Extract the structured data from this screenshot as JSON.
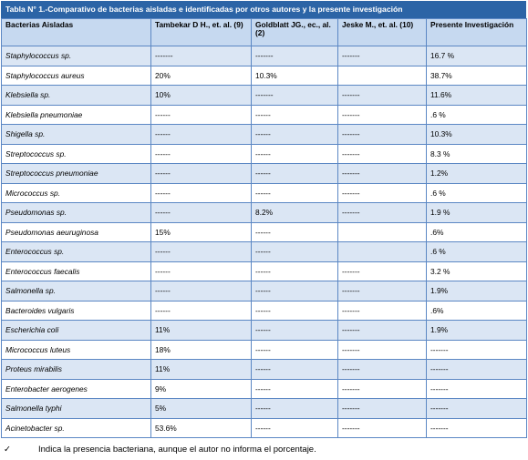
{
  "table": {
    "title": "Tabla N° 1.-Comparativo de bacterias aisladas e identificadas por otros autores y la presente investigación",
    "header": [
      "Bacterias Aisladas",
      "Tambekar D H., et. al. (9)",
      "Goldblatt JG., ec., al. (2)",
      "Jeske M., et. al. (10)",
      "Presente Investigación"
    ],
    "rows": [
      [
        "Staphylococcus sp.",
        "-------",
        "-------",
        "-------",
        "16.7 %"
      ],
      [
        "Staphylococcus aureus",
        "20%",
        "10.3%",
        null,
        "38.7%"
      ],
      [
        "Klebsiella sp.",
        "10%",
        "-------",
        "-------",
        "11.6%"
      ],
      [
        "Klebsiella pneumoniae",
        "------",
        "------",
        "-------",
        ".6 %"
      ],
      [
        "Shigella sp.",
        "------",
        "------",
        "-------",
        "10.3%"
      ],
      [
        "Streptococcus sp.",
        "------",
        "------",
        "-------",
        "8.3 %"
      ],
      [
        "Streptococcus pneumoniae",
        "------",
        "------",
        "-------",
        "1.2%"
      ],
      [
        "Micrococcus sp.",
        "------",
        "------",
        "-------",
        ".6 %"
      ],
      [
        "Pseudomonas sp.",
        "------",
        "8.2%",
        "-------",
        "1.9 %"
      ],
      [
        "Pseudomonas aeuruginosa",
        "15%",
        "------",
        null,
        ".6%"
      ],
      [
        "Enterococcus sp.",
        "------",
        "------",
        null,
        ".6 %"
      ],
      [
        "Enterococcus faecalis",
        "------",
        "------",
        "-------",
        "3.2 %"
      ],
      [
        "Salmonella sp.",
        "------",
        "------",
        "-------",
        "1.9%"
      ],
      [
        "Bacteroides vulgaris",
        "------",
        "------",
        "-------",
        ".6%"
      ],
      [
        "Escherichia coli",
        "11%",
        "------",
        "-------",
        "1.9%"
      ],
      [
        "Micrococcus luteus",
        "18%",
        "------",
        "-------",
        "-------"
      ],
      [
        "Proteus mirabilis",
        "11%",
        "------",
        "-------",
        "-------"
      ],
      [
        "Enterobacter aerogenes",
        "9%",
        "------",
        "-------",
        "-------"
      ],
      [
        "Salmonella typhi",
        "5%",
        "------",
        "-------",
        "-------"
      ],
      [
        "Acinetobacter sp.",
        "53.6%",
        "------",
        "-------",
        "-------"
      ]
    ]
  },
  "footnote": {
    "symbol": "✓",
    "text": "Indica la presencia bacteriana, aunque el autor no informa el porcentaje."
  }
}
